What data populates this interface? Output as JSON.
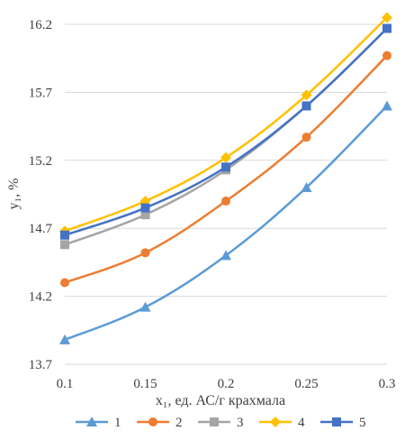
{
  "chart_data": {
    "type": "line",
    "xlabel": "x₁, ед. АС/г крахмала",
    "ylabel": "y₁, %",
    "x": [
      0.1,
      0.15,
      0.2,
      0.25,
      0.3
    ],
    "x_tick_labels": [
      "0.1",
      "0.15",
      "0.2",
      "0.25",
      "0.3"
    ],
    "ylim": [
      13.7,
      16.2
    ],
    "y_ticks": [
      13.7,
      14.2,
      14.7,
      15.2,
      15.7,
      16.2
    ],
    "y_tick_labels": [
      "13.7",
      "14.2",
      "14.7",
      "15.2",
      "15.7",
      "16.2"
    ],
    "grid": "horizontal",
    "legend_position": "bottom",
    "series": [
      {
        "name": "1",
        "color": "#5b9bd5",
        "marker": "triangle",
        "values": [
          13.88,
          14.12,
          14.5,
          15.0,
          15.6
        ]
      },
      {
        "name": "2",
        "color": "#ed7d31",
        "marker": "circle",
        "values": [
          14.3,
          14.52,
          14.9,
          15.37,
          15.97
        ]
      },
      {
        "name": "3",
        "color": "#a5a5a5",
        "marker": "square",
        "values": [
          14.58,
          14.8,
          15.13,
          15.6,
          16.17
        ]
      },
      {
        "name": "4",
        "color": "#ffc000",
        "marker": "diamond",
        "values": [
          14.68,
          14.9,
          15.22,
          15.68,
          16.25
        ]
      },
      {
        "name": "5",
        "color": "#4472c4",
        "marker": "square",
        "values": [
          14.65,
          14.85,
          15.15,
          15.6,
          16.17
        ]
      }
    ]
  }
}
